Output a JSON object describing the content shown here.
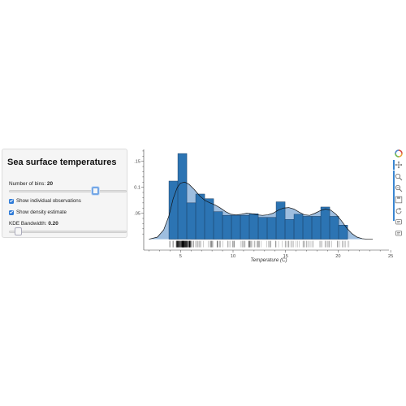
{
  "panel": {
    "title": "Sea surface temperatures",
    "bins_label": "Number of bins: ",
    "bins_value": "20",
    "bins_fraction": 0.75,
    "show_obs_label": "Show individual observations",
    "show_obs_checked": true,
    "show_density_label": "Show density estimate",
    "show_density_checked": true,
    "kde_label": "KDE Bandwidth: ",
    "kde_value": "0.20",
    "kde_fraction": 0.05
  },
  "toolbar": {
    "items": [
      "bokeh-logo-icon",
      "pan-icon",
      "box-zoom-icon",
      "wheel-zoom-icon",
      "save-icon",
      "reset-icon",
      "hover-icon",
      "hover-icon-2"
    ]
  },
  "colors": {
    "bar_fill": "#2c74b3",
    "bar_stroke": "#1b3f66",
    "density_fill": "#8db3d9",
    "accent": "#3a86d1"
  },
  "chart_data": {
    "type": "bar",
    "xlabel": "Temperature (C)",
    "xlim": [
      1.5,
      25.3
    ],
    "ylim": [
      -0.021,
      0.173
    ],
    "xticks": [
      5,
      10,
      15,
      20,
      25
    ],
    "yticks": [
      0.05,
      0.1,
      0.15
    ],
    "ytick_labels": [
      "0.05",
      "0.1",
      "0.15"
    ],
    "bins": {
      "edges": [
        3.9,
        4.75,
        5.6,
        6.45,
        7.3,
        8.15,
        9.0,
        9.85,
        10.7,
        11.55,
        12.4,
        13.25,
        14.1,
        14.95,
        15.8,
        16.65,
        17.5,
        18.35,
        19.2,
        20.05,
        20.9
      ],
      "values": [
        0.112,
        0.165,
        0.07,
        0.087,
        0.078,
        0.053,
        0.046,
        0.046,
        0.046,
        0.049,
        0.042,
        0.042,
        0.072,
        0.038,
        0.048,
        0.044,
        0.044,
        0.062,
        0.044,
        0.027
      ]
    },
    "density": {
      "x": [
        2.0,
        2.8,
        3.4,
        3.9,
        4.3,
        4.7,
        5.0,
        5.4,
        5.8,
        6.3,
        6.8,
        7.3,
        7.8,
        8.3,
        8.8,
        9.3,
        9.8,
        10.3,
        10.8,
        11.3,
        11.8,
        12.3,
        12.8,
        13.3,
        13.8,
        14.3,
        14.8,
        15.3,
        15.8,
        16.3,
        16.8,
        17.3,
        17.8,
        18.3,
        18.8,
        19.3,
        19.8,
        20.3,
        20.8,
        21.3,
        21.8,
        22.3,
        22.8,
        23.3
      ],
      "y": [
        0.0,
        0.004,
        0.018,
        0.045,
        0.078,
        0.1,
        0.108,
        0.11,
        0.106,
        0.096,
        0.084,
        0.075,
        0.07,
        0.066,
        0.06,
        0.053,
        0.048,
        0.047,
        0.048,
        0.05,
        0.049,
        0.047,
        0.046,
        0.047,
        0.05,
        0.056,
        0.06,
        0.061,
        0.058,
        0.052,
        0.047,
        0.046,
        0.05,
        0.055,
        0.058,
        0.056,
        0.048,
        0.036,
        0.022,
        0.011,
        0.004,
        0.001,
        0.0,
        0.0
      ]
    },
    "rug": {
      "range": [
        3.9,
        21.2
      ],
      "dense_range": [
        4.6,
        6.0
      ]
    }
  }
}
